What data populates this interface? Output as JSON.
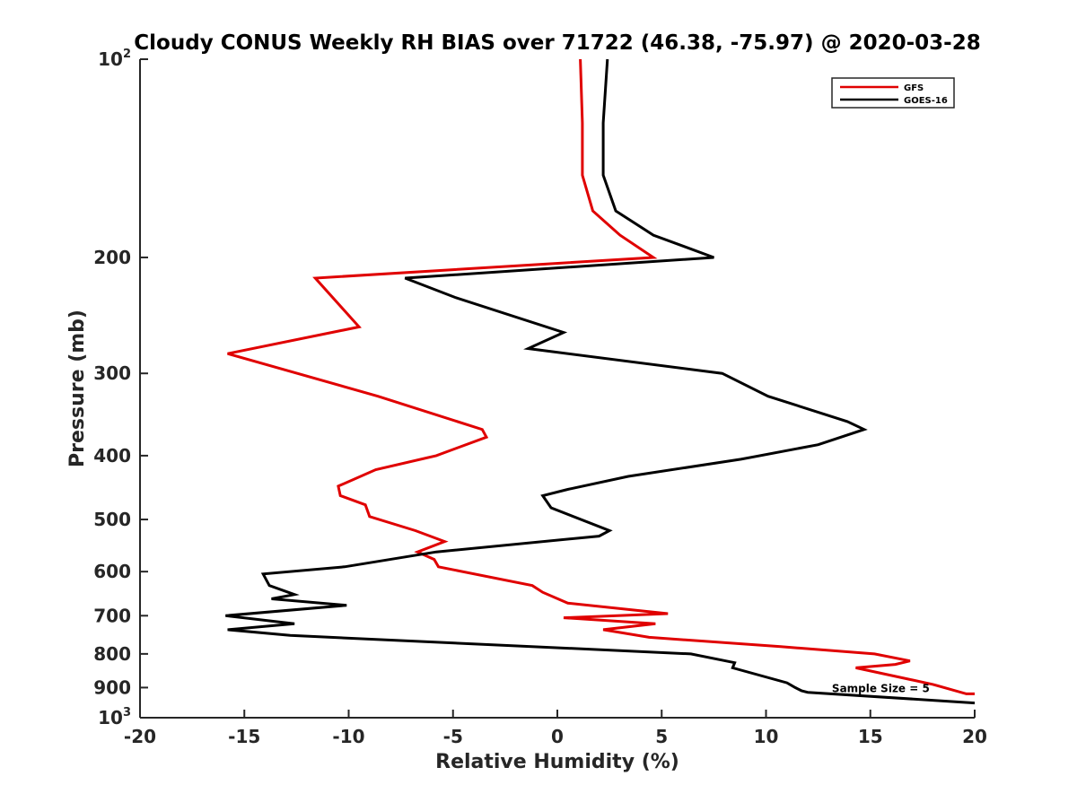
{
  "chart_data": {
    "type": "line",
    "title": "Cloudy CONUS Weekly RH BIAS over 71722 (46.38, -75.97) @ 2020-03-28",
    "xlabel": "Relative Humidity (%)",
    "ylabel": "Pressure (mb)",
    "xlim": [
      -20,
      20
    ],
    "ylim": [
      100,
      1000
    ],
    "yscale": "log",
    "yreversed": true,
    "x_ticks": [
      -20,
      -15,
      -10,
      -5,
      0,
      5,
      10,
      15,
      20
    ],
    "x_tick_labels": [
      "-20",
      "-15",
      "-10",
      "-5",
      "0",
      "5",
      "10",
      "15",
      "20"
    ],
    "y_ticks": [
      100,
      200,
      300,
      400,
      500,
      600,
      700,
      800,
      900,
      1000
    ],
    "y_tick_labels": [
      {
        "base": "10",
        "exp": "2"
      },
      {
        "base": "200",
        "exp": ""
      },
      {
        "base": "300",
        "exp": ""
      },
      {
        "base": "400",
        "exp": ""
      },
      {
        "base": "500",
        "exp": ""
      },
      {
        "base": "600",
        "exp": ""
      },
      {
        "base": "700",
        "exp": ""
      },
      {
        "base": "800",
        "exp": ""
      },
      {
        "base": "900",
        "exp": ""
      },
      {
        "base": "10",
        "exp": "3"
      }
    ],
    "grid": false,
    "legend_position": "top-right",
    "series": [
      {
        "name": "GFS",
        "color": "#e00000",
        "points": [
          [
            1.1,
            100
          ],
          [
            1.2,
            125
          ],
          [
            1.2,
            150
          ],
          [
            1.7,
            170
          ],
          [
            3.0,
            185
          ],
          [
            4.6,
            200
          ],
          [
            -11.6,
            215
          ],
          [
            -9.5,
            255
          ],
          [
            -15.8,
            280
          ],
          [
            -8.6,
            325
          ],
          [
            -3.6,
            365
          ],
          [
            -3.4,
            375
          ],
          [
            -5.8,
            400
          ],
          [
            -8.7,
            420
          ],
          [
            -10.5,
            445
          ],
          [
            -10.4,
            460
          ],
          [
            -9.2,
            475
          ],
          [
            -9.0,
            495
          ],
          [
            -6.8,
            520
          ],
          [
            -5.4,
            540
          ],
          [
            -6.7,
            560
          ],
          [
            -5.9,
            575
          ],
          [
            -5.7,
            590
          ],
          [
            -1.2,
            630
          ],
          [
            -0.7,
            645
          ],
          [
            0.5,
            670
          ],
          [
            5.3,
            695
          ],
          [
            0.3,
            705
          ],
          [
            4.7,
            720
          ],
          [
            2.2,
            735
          ],
          [
            4.4,
            755
          ],
          [
            10.7,
            780
          ],
          [
            15.2,
            800
          ],
          [
            16.9,
            820
          ],
          [
            16.2,
            830
          ],
          [
            14.3,
            840
          ],
          [
            18.0,
            890
          ],
          [
            19.6,
            920
          ],
          [
            20.0,
            920
          ]
        ]
      },
      {
        "name": "GOES-16",
        "color": "#000000",
        "points": [
          [
            2.4,
            100
          ],
          [
            2.2,
            125
          ],
          [
            2.2,
            150
          ],
          [
            2.8,
            170
          ],
          [
            4.6,
            185
          ],
          [
            7.5,
            200
          ],
          [
            -7.3,
            215
          ],
          [
            -4.9,
            230
          ],
          [
            0.3,
            260
          ],
          [
            -1.4,
            275
          ],
          [
            7.9,
            300
          ],
          [
            10.1,
            325
          ],
          [
            13.9,
            355
          ],
          [
            14.7,
            365
          ],
          [
            12.5,
            385
          ],
          [
            8.8,
            405
          ],
          [
            3.4,
            430
          ],
          [
            0.5,
            450
          ],
          [
            -0.7,
            460
          ],
          [
            -0.3,
            480
          ],
          [
            2.5,
            520
          ],
          [
            2.0,
            530
          ],
          [
            -5.8,
            560
          ],
          [
            -10.2,
            590
          ],
          [
            -14.1,
            605
          ],
          [
            -13.8,
            630
          ],
          [
            -12.6,
            650
          ],
          [
            -13.7,
            660
          ],
          [
            -10.1,
            675
          ],
          [
            -15.9,
            700
          ],
          [
            -12.6,
            720
          ],
          [
            -15.8,
            735
          ],
          [
            -12.8,
            750
          ],
          [
            6.4,
            800
          ],
          [
            8.5,
            825
          ],
          [
            8.4,
            840
          ],
          [
            11.0,
            885
          ],
          [
            11.4,
            900
          ],
          [
            11.7,
            910
          ],
          [
            12.0,
            915
          ],
          [
            20.0,
            950
          ]
        ]
      }
    ],
    "annotations": [
      {
        "text": "Sample Size = 5",
        "x": 15.5,
        "y": 900
      }
    ]
  }
}
